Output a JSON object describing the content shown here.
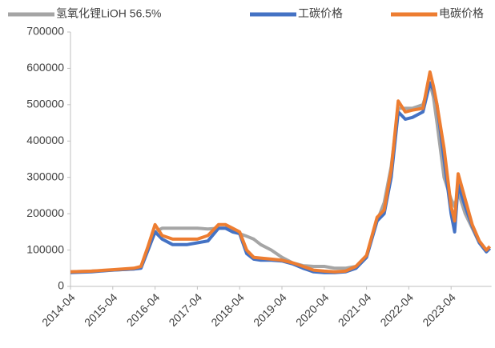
{
  "chart_data": {
    "type": "line",
    "x": [
      "2014-04",
      "2014-10",
      "2015-04",
      "2015-10",
      "2015-12",
      "2016-02",
      "2016-04",
      "2016-06",
      "2016-09",
      "2017-01",
      "2017-04",
      "2017-07",
      "2017-10",
      "2017-12",
      "2018-02",
      "2018-04",
      "2018-06",
      "2018-08",
      "2018-10",
      "2019-01",
      "2019-04",
      "2019-07",
      "2019-10",
      "2020-01",
      "2020-04",
      "2020-07",
      "2020-10",
      "2021-01",
      "2021-04",
      "2021-07",
      "2021-09",
      "2021-11",
      "2022-01",
      "2022-03",
      "2022-05",
      "2022-08",
      "2022-10",
      "2022-11",
      "2022-12",
      "2023-02",
      "2023-04",
      "2023-05",
      "2023-06",
      "2023-08",
      "2023-10",
      "2023-12",
      "2024-02",
      "2024-03"
    ],
    "series": [
      {
        "name": "氢氧化锂LiOH 56.5%",
        "color": "#a5a5a5",
        "values": [
          40000,
          42000,
          45000,
          48000,
          55000,
          100000,
          150000,
          160000,
          160000,
          160000,
          160000,
          158000,
          160000,
          160000,
          155000,
          145000,
          138000,
          130000,
          115000,
          100000,
          80000,
          65000,
          57000,
          55000,
          55000,
          50000,
          50000,
          55000,
          85000,
          180000,
          230000,
          330000,
          490000,
          490000,
          490000,
          500000,
          560000,
          520000,
          450000,
          300000,
          240000,
          220000,
          260000,
          200000,
          160000,
          120000,
          100000,
          105000
        ]
      },
      {
        "name": "工碳价格",
        "color": "#4472c4",
        "values": [
          38000,
          40000,
          45000,
          48000,
          50000,
          100000,
          150000,
          130000,
          115000,
          115000,
          120000,
          125000,
          160000,
          160000,
          150000,
          145000,
          90000,
          75000,
          72000,
          72000,
          70000,
          62000,
          50000,
          40000,
          38000,
          38000,
          40000,
          50000,
          80000,
          180000,
          200000,
          300000,
          480000,
          460000,
          465000,
          480000,
          560000,
          540000,
          500000,
          350000,
          200000,
          150000,
          280000,
          220000,
          165000,
          120000,
          95000,
          105000
        ]
      },
      {
        "name": "电碳价格",
        "color": "#ed7d31",
        "values": [
          40000,
          42000,
          46000,
          50000,
          55000,
          110000,
          170000,
          140000,
          130000,
          130000,
          130000,
          140000,
          170000,
          170000,
          160000,
          150000,
          100000,
          80000,
          78000,
          75000,
          72000,
          65000,
          55000,
          45000,
          42000,
          40000,
          42000,
          55000,
          85000,
          190000,
          210000,
          320000,
          510000,
          480000,
          485000,
          490000,
          590000,
          550000,
          500000,
          380000,
          220000,
          180000,
          310000,
          240000,
          170000,
          125000,
          100000,
          110000
        ]
      }
    ],
    "xticks": [
      "2014-04",
      "2015-04",
      "2016-04",
      "2017-04",
      "2018-04",
      "2019-04",
      "2020-04",
      "2021-04",
      "2022-04",
      "2023-04"
    ],
    "ylim": [
      0,
      700000
    ],
    "yticks": [
      0,
      100000,
      200000,
      300000,
      400000,
      500000,
      600000,
      700000
    ]
  }
}
